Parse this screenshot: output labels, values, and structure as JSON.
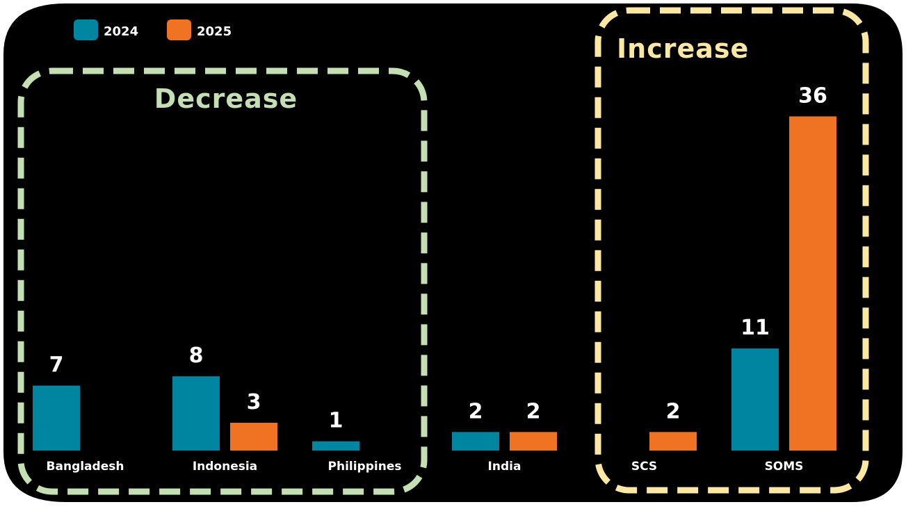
{
  "chart_data": {
    "type": "bar",
    "categories": [
      "Bangladesh",
      "Indonesia",
      "Philippines",
      "India",
      "SCS",
      "SOMS"
    ],
    "series": [
      {
        "name": "2024",
        "color": "#0085a1",
        "values": [
          7,
          8,
          1,
          2,
          null,
          11
        ]
      },
      {
        "name": "2025",
        "color": "#f07324",
        "values": [
          null,
          3,
          null,
          2,
          2,
          36
        ]
      }
    ],
    "ylim": [
      0,
      40
    ],
    "grid": false,
    "legend": "top-left",
    "annotations": [
      {
        "label": "Decrease",
        "color": "#c5dfb4",
        "categories": [
          "Bangladesh",
          "Indonesia",
          "Philippines"
        ]
      },
      {
        "label": "Increase",
        "color": "#fde7a4",
        "categories": [
          "SCS",
          "SOMS"
        ]
      }
    ]
  }
}
